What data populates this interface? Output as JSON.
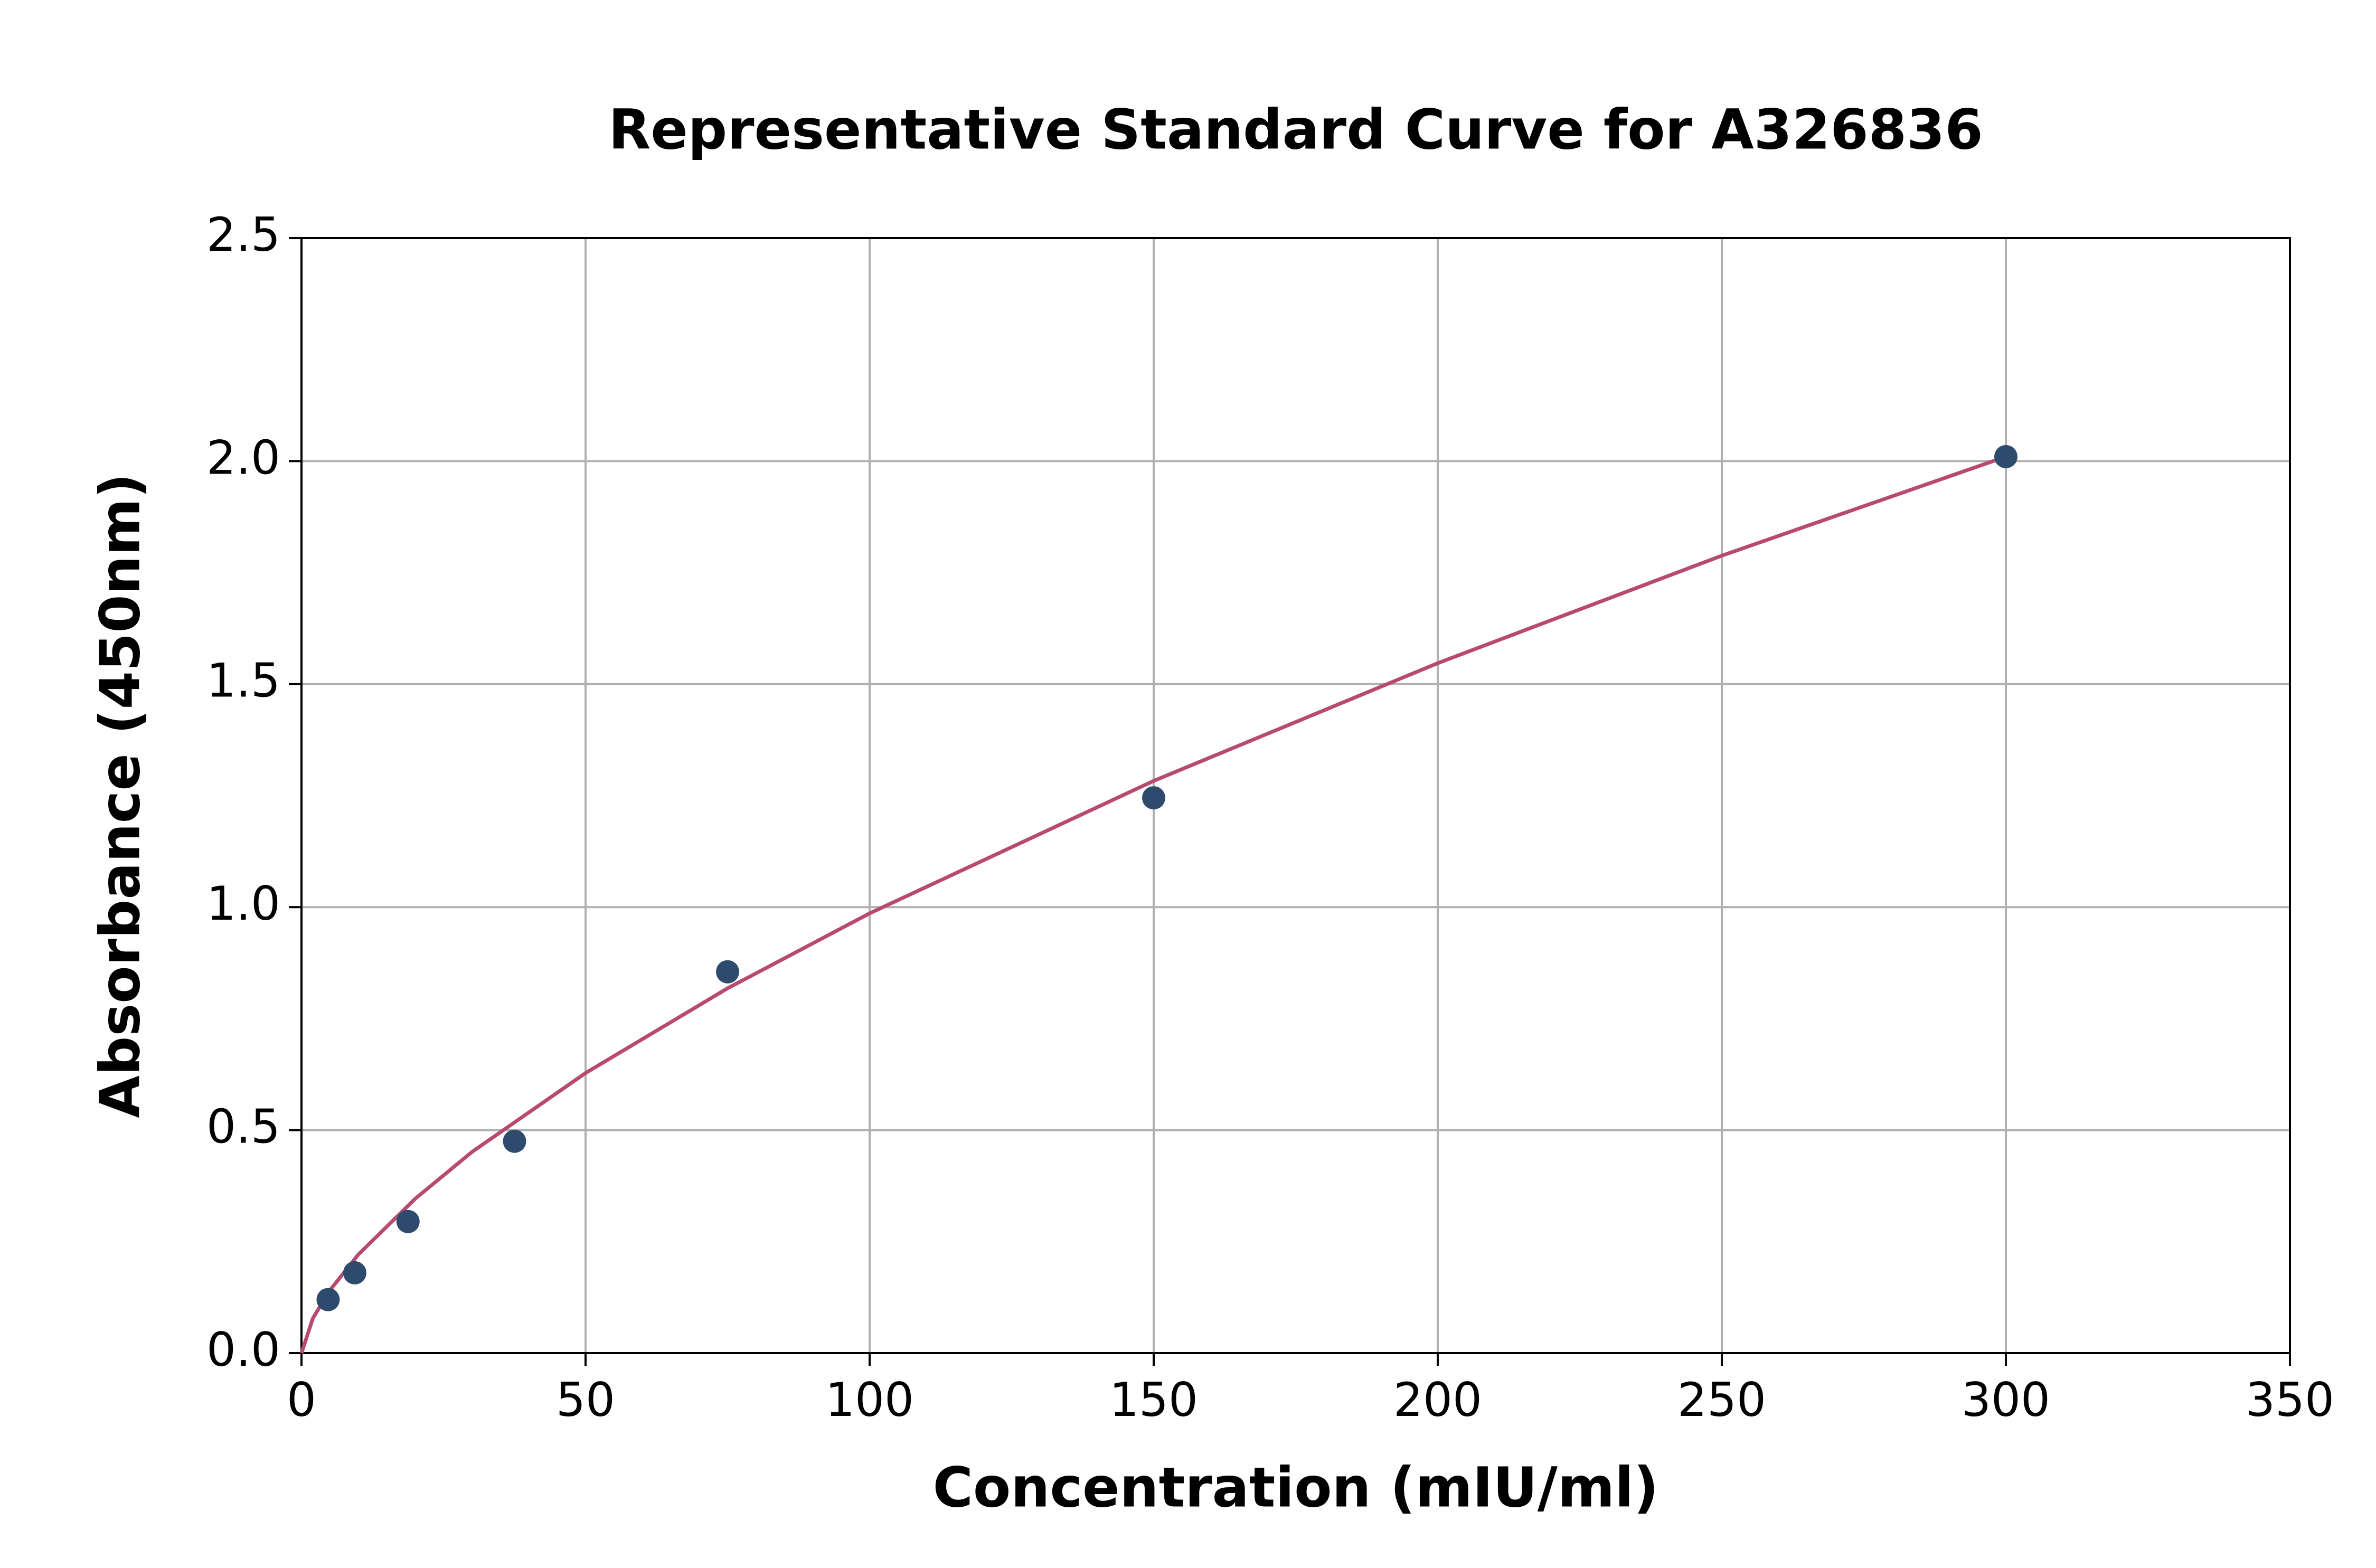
{
  "chart_data": {
    "type": "scatter",
    "title": "Representative Standard Curve for A326836",
    "x_label": "Concentration (mIU/ml)",
    "y_label": "Absorbance (450nm)",
    "points": {
      "color": "#2e4b6d",
      "x": [
        4.69,
        9.38,
        18.75,
        37.5,
        75,
        150,
        300
      ],
      "y": [
        0.12,
        0.18,
        0.295,
        0.475,
        0.855,
        1.245,
        2.01
      ]
    },
    "fit": {
      "color": "#b84a72",
      "x": [
        0,
        2,
        5,
        10,
        20,
        30,
        50,
        75,
        100,
        150,
        200,
        250,
        300
      ],
      "y": [
        0,
        0.078,
        0.141,
        0.221,
        0.346,
        0.451,
        0.628,
        0.818,
        0.986,
        1.283,
        1.547,
        1.788,
        2.01
      ]
    },
    "xlim": [
      0,
      350
    ],
    "xticks": [
      0,
      50,
      100,
      150,
      200,
      250,
      300,
      350
    ],
    "ylim": [
      0,
      2.5
    ],
    "yticks": [
      {
        "value": 0,
        "label": "0.0"
      },
      0.5,
      {
        "value": 1,
        "label": "1.0"
      },
      1.5,
      {
        "value": 2,
        "label": "2.0"
      },
      2.5
    ],
    "grid": true
  }
}
